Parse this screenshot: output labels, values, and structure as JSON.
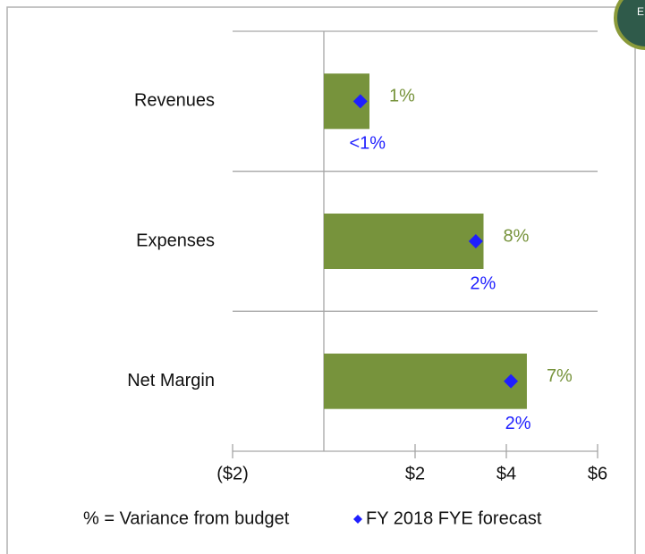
{
  "badge": "E",
  "chart_data": {
    "type": "bar",
    "categories": [
      "Revenues",
      "Expenses",
      "Net Margin"
    ],
    "series": [
      {
        "name": "% = Variance from budget",
        "color": "#77933c",
        "values": [
          1.0,
          3.5,
          4.45
        ],
        "annotations": [
          "1%",
          "8%",
          "7%"
        ]
      },
      {
        "name": "FY 2018 FYE forecast",
        "color": "#1f1fff",
        "marker": "diamond",
        "values": [
          0.8,
          3.33,
          4.1
        ],
        "annotations": [
          "<1%",
          "2%",
          "2%"
        ]
      }
    ],
    "xlim": [
      -2,
      6
    ],
    "xticks": [
      {
        "value": -2,
        "label": "($2)"
      },
      {
        "value": 2,
        "label": "$2"
      },
      {
        "value": 4,
        "label": "$4"
      },
      {
        "value": 6,
        "label": "$6"
      }
    ],
    "grid": true
  }
}
